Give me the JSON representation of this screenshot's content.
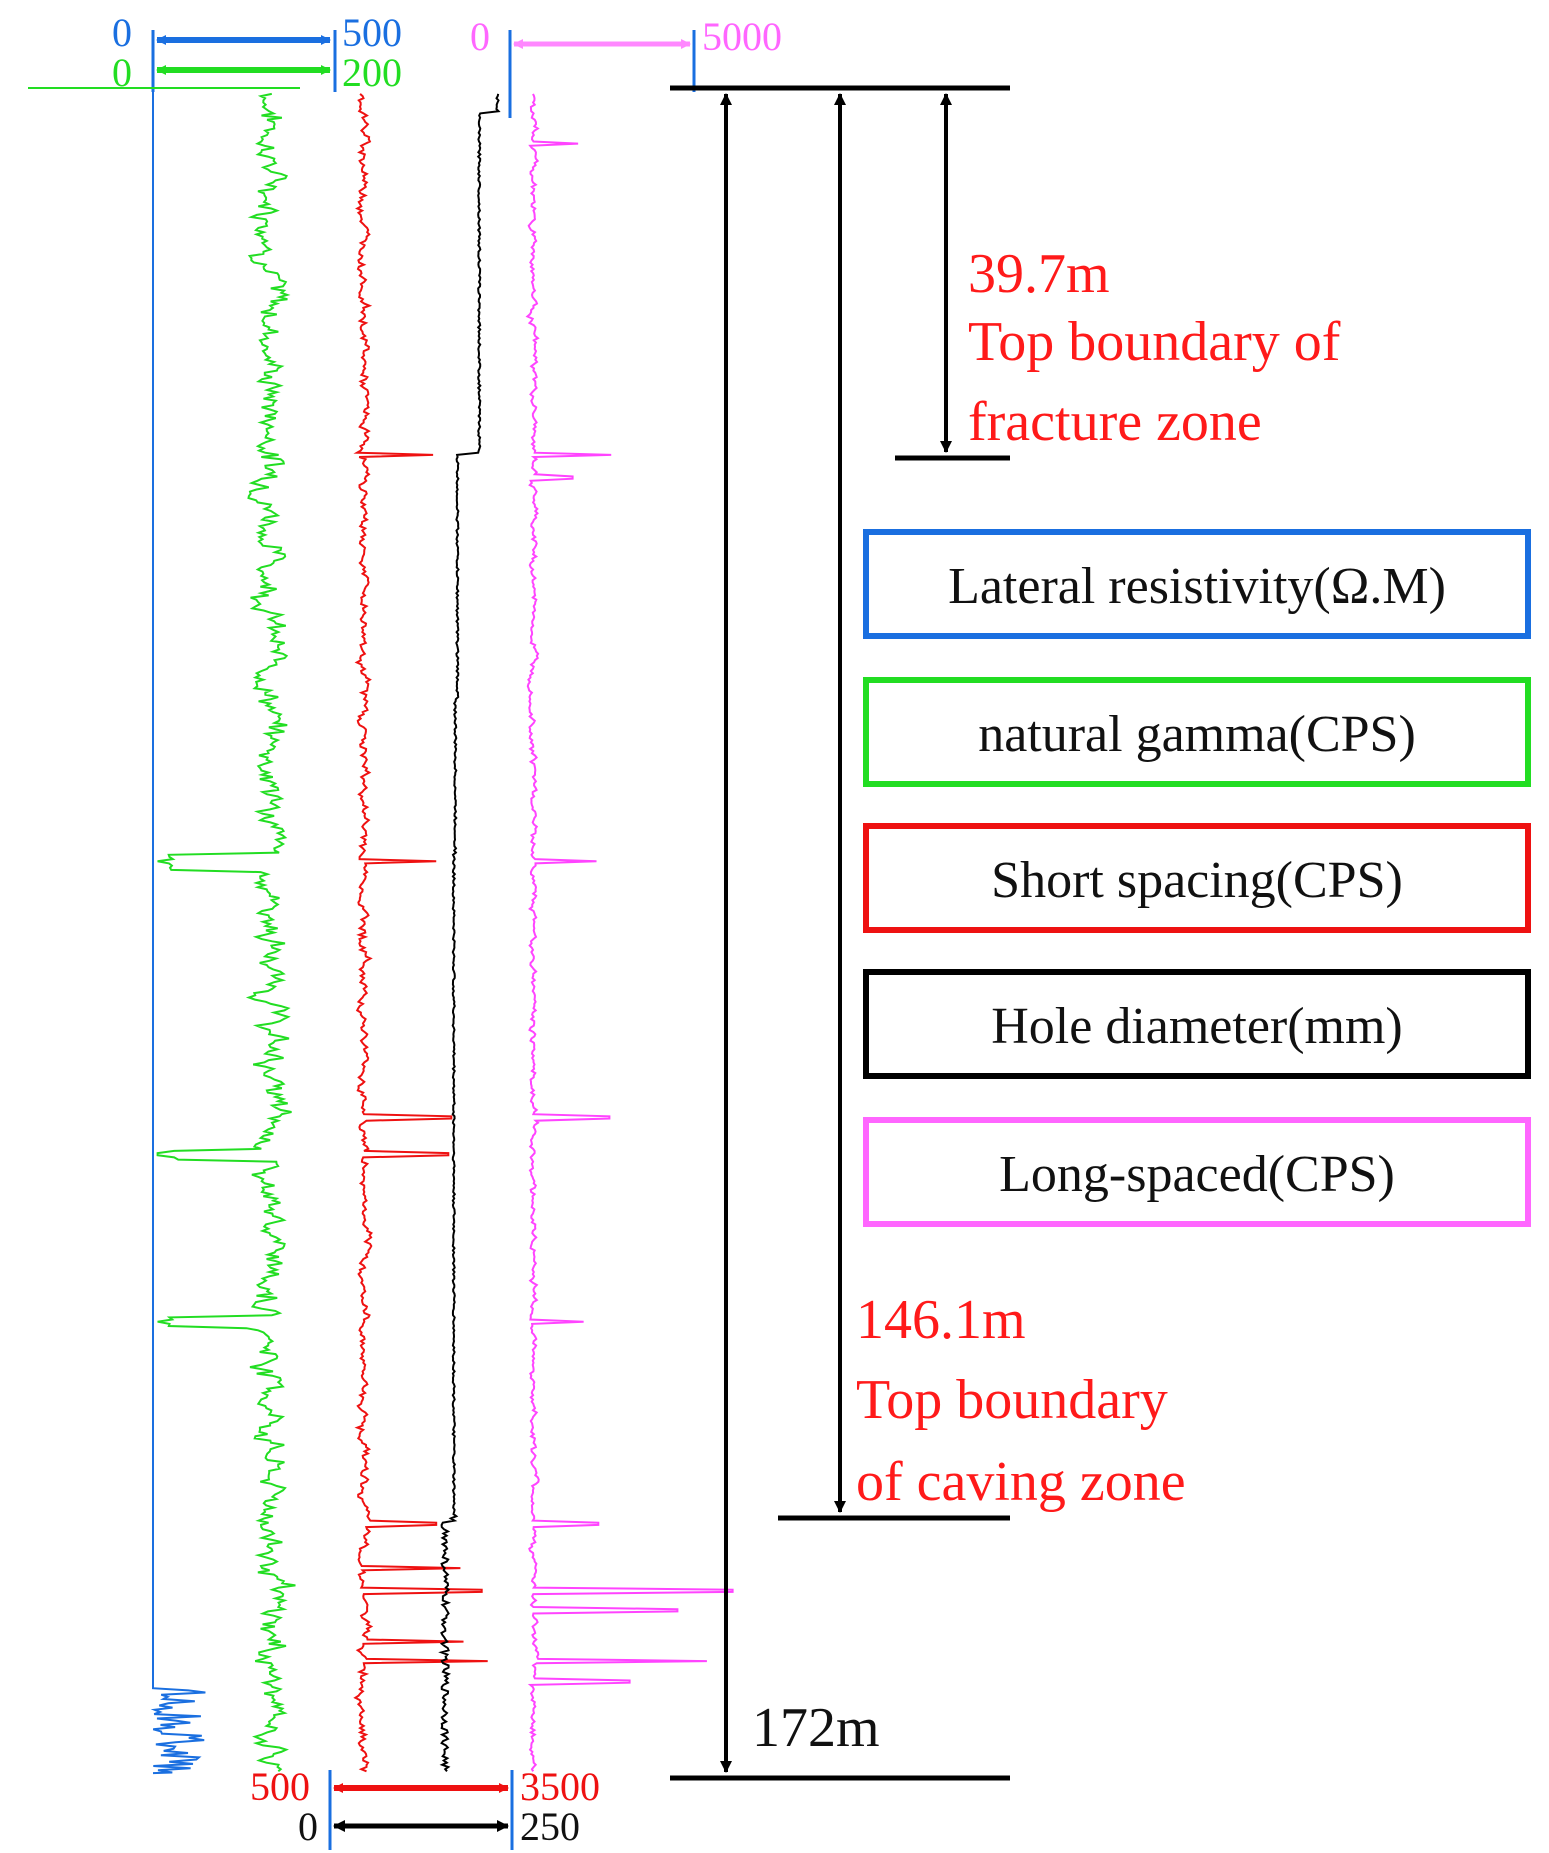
{
  "chart_data": {
    "type": "line",
    "title": "",
    "depth_axis": {
      "unit": "m",
      "min": 0,
      "max": 172
    },
    "scales": [
      {
        "series": "Lateral resistivity(Ω.M)",
        "color": "#1a6fe0",
        "min_label": "0",
        "max_label": "500",
        "min": 0,
        "max": 500,
        "position": "top"
      },
      {
        "series": "natural gamma(CPS)",
        "color": "#22dd22",
        "min_label": "0",
        "max_label": "200",
        "min": 0,
        "max": 200,
        "position": "top"
      },
      {
        "series": "Long-spaced(CPS)",
        "color": "#ff44ff",
        "min_label": "0",
        "max_label": "5000",
        "min": 0,
        "max": 5000,
        "position": "top"
      },
      {
        "series": "Short spacing(CPS)",
        "color": "#ee1111",
        "min_label": "500",
        "max_label": "3500",
        "min": 500,
        "max": 3500,
        "position": "bottom"
      },
      {
        "series": "Hole diameter(mm)",
        "color": "#000000",
        "min_label": "0",
        "max_label": "250",
        "min": 0,
        "max": 250,
        "position": "bottom"
      }
    ],
    "legend": [
      {
        "label": "Lateral resistivity(Ω.M)",
        "color": "#1a6fe0"
      },
      {
        "label": "natural gamma(CPS)",
        "color": "#22dd22"
      },
      {
        "label": "Short spacing(CPS)",
        "color": "#ee1111"
      },
      {
        "label": "Hole diameter(mm)",
        "color": "#000000"
      },
      {
        "label": "Long-spaced(CPS)",
        "color": "#ff44ff"
      }
    ],
    "legend_position": "right",
    "annotations": [
      {
        "depth": 39.7,
        "value_label": "39.7m",
        "text_lines": [
          "Top boundary of",
          "fracture zone"
        ]
      },
      {
        "depth": 146.1,
        "value_label": "146.1m",
        "text_lines": [
          "Top boundary",
          "of caving zone"
        ]
      },
      {
        "depth": 172,
        "value_label": "172m",
        "text_lines": []
      }
    ],
    "series": [
      {
        "name": "natural gamma(CPS)",
        "color": "#22dd22",
        "mean": 130,
        "sd": 16,
        "spikes": [
          {
            "depth": 78.7,
            "value": 5
          },
          {
            "depth": 108.5,
            "value": 5
          },
          {
            "depth": 125.6,
            "value": 5
          }
        ],
        "low_zones": [
          {
            "from": 78,
            "to": 79.7,
            "value": 20
          },
          {
            "from": 108,
            "to": 109.2,
            "value": 25
          },
          {
            "from": 125,
            "to": 126.2,
            "value": 20
          }
        ]
      },
      {
        "name": "Short spacing(CPS)",
        "color": "#ee1111",
        "mean": 1060,
        "sd": 80,
        "spikes": [
          {
            "depth": 37.3,
            "value": 2200
          },
          {
            "depth": 78.7,
            "value": 2250
          },
          {
            "depth": 104.8,
            "value": 2500
          },
          {
            "depth": 108.5,
            "value": 2450
          },
          {
            "depth": 146.1,
            "value": 2250
          },
          {
            "depth": 150.6,
            "value": 2650
          },
          {
            "depth": 152.9,
            "value": 3000
          },
          {
            "depth": 158.1,
            "value": 2700
          },
          {
            "depth": 160.1,
            "value": 3100
          }
        ]
      },
      {
        "name": "Hole diameter(mm)",
        "color": "#000000",
        "baseline": 210,
        "zones": [
          {
            "from": 0,
            "to": 2.5,
            "value": 230
          },
          {
            "from": 2.5,
            "to": 37.3,
            "value": 205
          },
          {
            "from": 37.3,
            "to": 62,
            "value": 175
          },
          {
            "from": 62,
            "to": 78,
            "value": 172
          },
          {
            "from": 78,
            "to": 146,
            "value": 170
          },
          {
            "from": 146,
            "to": 172,
            "value": 158
          }
        ]
      },
      {
        "name": "Long-spaced(CPS)",
        "color": "#ff44ff",
        "mean": 640,
        "sd": 90,
        "spikes": [
          {
            "depth": 5.7,
            "value": 1850
          },
          {
            "depth": 37.3,
            "value": 2750
          },
          {
            "depth": 39.7,
            "value": 1700
          },
          {
            "depth": 78.7,
            "value": 2350
          },
          {
            "depth": 104.8,
            "value": 2700
          },
          {
            "depth": 125.6,
            "value": 2000
          },
          {
            "depth": 146.1,
            "value": 2400
          },
          {
            "depth": 152.9,
            "value": 6050
          },
          {
            "depth": 154.9,
            "value": 4550
          },
          {
            "depth": 160.1,
            "value": 5350
          },
          {
            "depth": 162.2,
            "value": 3250
          }
        ]
      },
      {
        "name": "Lateral resistivity(Ω.M)",
        "color": "#1a6fe0",
        "baseline": 0,
        "zone": {
          "from": 163,
          "to": 171.5,
          "max": 220
        }
      }
    ]
  }
}
